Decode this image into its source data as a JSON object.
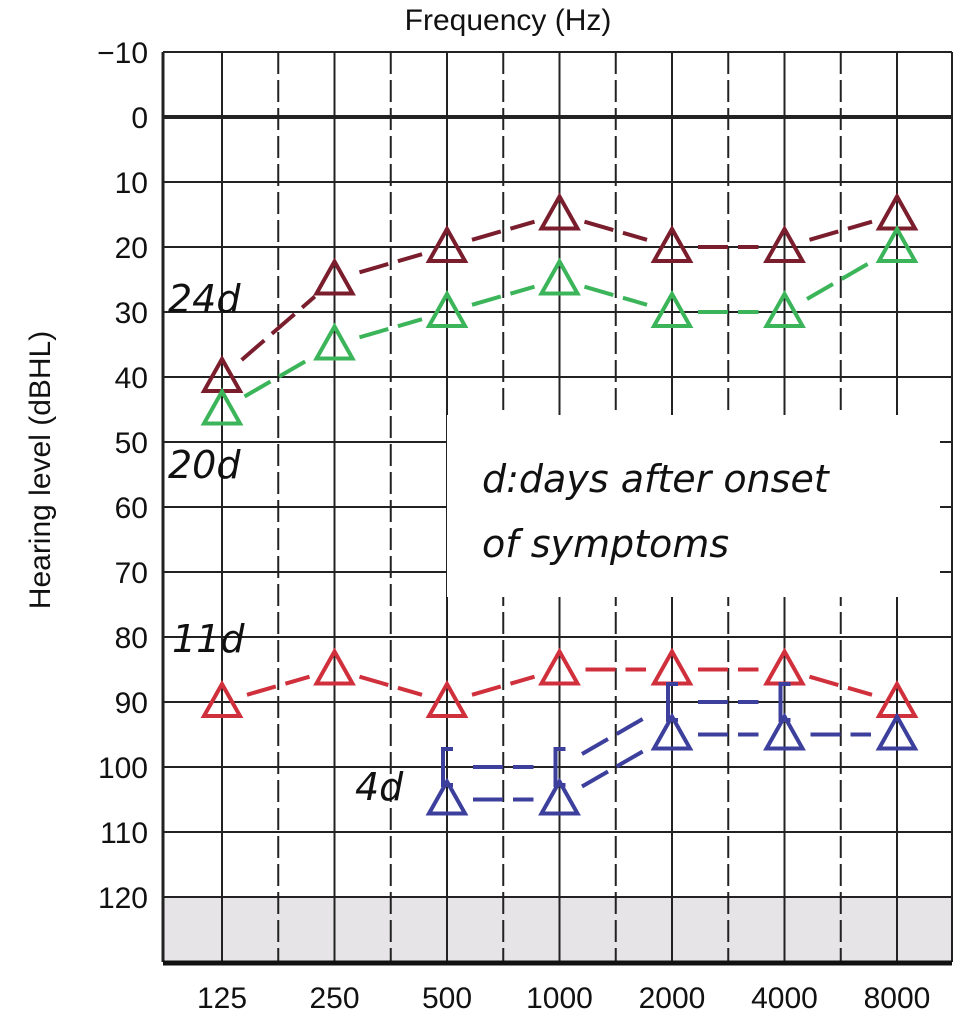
{
  "chart_data": {
    "type": "line",
    "title": "",
    "xlabel": "Frequency (Hz)",
    "ylabel": "Hearing level (dBHL)",
    "x_categories": [
      "125",
      "250",
      "500",
      "1000",
      "2000",
      "4000",
      "8000"
    ],
    "y_ticks": [
      "−10",
      "0",
      "10",
      "20",
      "30",
      "40",
      "50",
      "60",
      "70",
      "80",
      "90",
      "100",
      "110",
      "120"
    ],
    "ylim": [
      -10,
      130
    ],
    "y_inverted": true,
    "grid": true,
    "shaded_region": [
      120,
      130
    ],
    "annotation": [
      "d:days after onset",
      "of symptoms"
    ],
    "series": [
      {
        "name": "24d",
        "marker": "triangle",
        "type": "air-conduction",
        "color": "#7a1e2e",
        "values": [
          40,
          25,
          20,
          15,
          20,
          20,
          15
        ]
      },
      {
        "name": "20d",
        "marker": "triangle",
        "type": "air-conduction",
        "color": "#3cb55a",
        "values": [
          45,
          35,
          30,
          25,
          30,
          30,
          20
        ]
      },
      {
        "name": "11d",
        "marker": "triangle",
        "type": "air-conduction",
        "color": "#d0303c",
        "values": [
          90,
          85,
          90,
          85,
          85,
          85,
          90
        ]
      },
      {
        "name": "4d",
        "marker": "triangle",
        "type": "air-conduction",
        "color": "#3c3f9c",
        "values": [
          null,
          null,
          105,
          105,
          95,
          95,
          95
        ]
      },
      {
        "name": "4d-bone",
        "marker": "bracket",
        "type": "bone-conduction",
        "color": "#3c3f9c",
        "values": [
          null,
          null,
          100,
          100,
          90,
          90,
          null
        ]
      }
    ]
  }
}
